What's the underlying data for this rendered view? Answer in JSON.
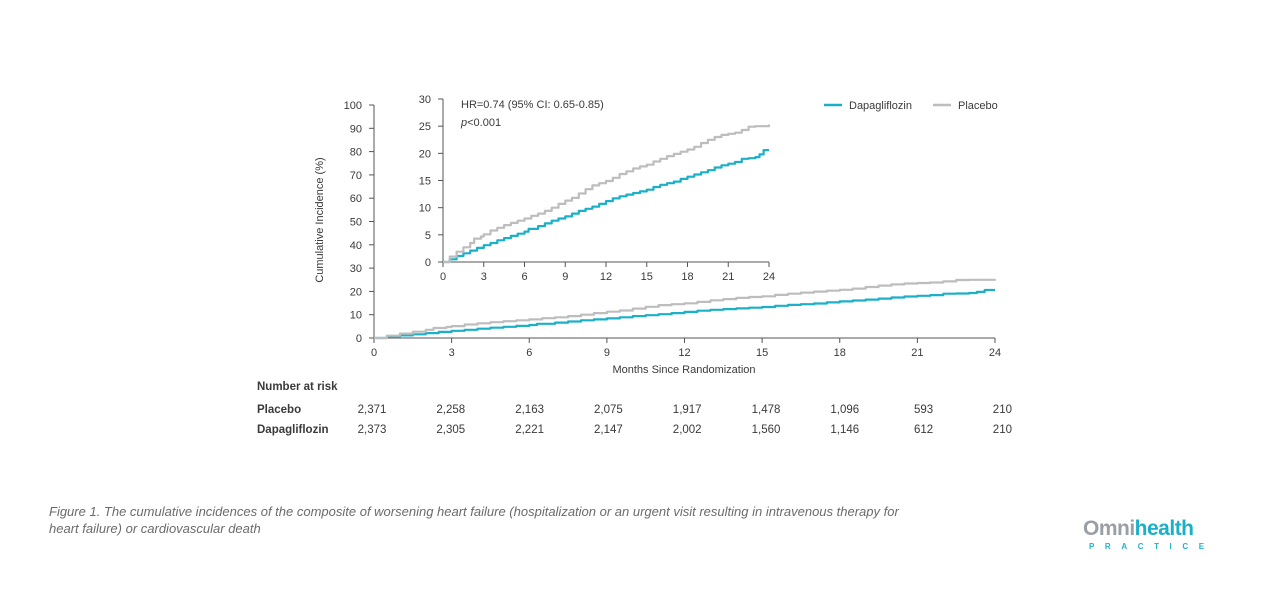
{
  "chart_data": {
    "type": "line",
    "title": "",
    "xlabel": "Months Since Randomization",
    "ylabel": "Cumulative Incidence (%)",
    "xlim": [
      0,
      24
    ],
    "ylim": [
      0,
      100
    ],
    "x_ticks": [
      "0",
      "3",
      "6",
      "9",
      "12",
      "15",
      "18",
      "21",
      "24"
    ],
    "y_ticks": [
      "0",
      "10",
      "20",
      "30",
      "40",
      "50",
      "60",
      "70",
      "80",
      "90",
      "100"
    ],
    "legend": {
      "placement": "top-right",
      "entries": [
        "Dapagliflozin",
        "Placebo"
      ]
    },
    "colors": {
      "Dapagliflozin": "#1ab0c8",
      "Placebo": "#bdbdbd",
      "axis": "#555555"
    },
    "series": [
      {
        "name": "Dapagliflozin",
        "x": [
          0,
          0.5,
          1,
          1.5,
          2,
          2.5,
          3,
          3.5,
          4,
          4.5,
          5,
          5.5,
          6,
          6.3,
          7,
          7.5,
          8,
          8.5,
          9,
          9.5,
          10,
          10.5,
          11,
          11.5,
          12,
          12.5,
          13,
          13.5,
          14,
          14.5,
          15,
          15.5,
          16,
          16.5,
          17,
          17.5,
          18,
          18.5,
          19,
          19.5,
          20,
          20.5,
          21,
          21.5,
          22,
          22.5,
          23,
          23.3,
          23.6,
          24
        ],
        "y": [
          0,
          0.5,
          1.1,
          1.6,
          2.1,
          2.6,
          3.1,
          3.5,
          4.0,
          4.4,
          4.8,
          5.2,
          5.6,
          6.1,
          6.6,
          7.1,
          7.6,
          8.0,
          8.4,
          8.9,
          9.4,
          9.8,
          10.2,
          10.7,
          11.2,
          11.7,
          12.1,
          12.4,
          12.7,
          13.0,
          13.3,
          13.8,
          14.2,
          14.5,
          14.8,
          15.3,
          15.7,
          16.1,
          16.5,
          16.9,
          17.4,
          17.8,
          18.1,
          18.4,
          19.0,
          19.1,
          19.3,
          19.8,
          20.6,
          20.6
        ]
      },
      {
        "name": "Placebo",
        "x": [
          0,
          0.5,
          1,
          1.5,
          2,
          2.3,
          2.8,
          3,
          3.5,
          4,
          4.5,
          5,
          5.5,
          6,
          6.5,
          7,
          7.5,
          8,
          8.5,
          9,
          9.5,
          10,
          10.5,
          11,
          11.5,
          12,
          12.5,
          13,
          13.5,
          14,
          14.5,
          15,
          15.5,
          16,
          16.5,
          17,
          17.5,
          18,
          18.5,
          19,
          19.5,
          20,
          20.5,
          21,
          21.5,
          22,
          22.5,
          23,
          23.5,
          24
        ],
        "y": [
          0,
          1.0,
          1.9,
          2.7,
          3.5,
          4.3,
          4.7,
          5.1,
          5.8,
          6.3,
          6.8,
          7.2,
          7.6,
          8.0,
          8.5,
          8.9,
          9.4,
          10.0,
          10.7,
          11.3,
          11.8,
          12.6,
          13.4,
          14.1,
          14.5,
          14.9,
          15.5,
          16.2,
          16.7,
          17.2,
          17.6,
          17.9,
          18.5,
          19.0,
          19.5,
          19.9,
          20.3,
          20.7,
          21.2,
          21.9,
          22.5,
          23.0,
          23.4,
          23.6,
          23.8,
          24.3,
          24.9,
          25.0,
          25.0,
          25.3
        ]
      }
    ],
    "inset": {
      "xlim": [
        0,
        24
      ],
      "ylim": [
        0,
        30
      ],
      "x_ticks": [
        "0",
        "3",
        "6",
        "9",
        "12",
        "15",
        "18",
        "21",
        "24"
      ],
      "y_ticks": [
        "0",
        "5",
        "10",
        "15",
        "20",
        "25",
        "30"
      ],
      "annotation_hr": "HR=0.74 (95% CI: 0.65-0.85)",
      "annotation_p_italic": "p",
      "annotation_p_rest": "<0.001"
    },
    "number_at_risk": {
      "heading": "Number at risk",
      "rows": [
        {
          "label": "Placebo",
          "values": [
            "2,371",
            "2,258",
            "2,163",
            "2,075",
            "1,917",
            "1,478",
            "1,096",
            "593",
            "210"
          ]
        },
        {
          "label": "Dapagliflozin",
          "values": [
            "2,373",
            "2,305",
            "2,221",
            "2,147",
            "2,002",
            "1,560",
            "1,146",
            "612",
            "210"
          ]
        }
      ]
    }
  },
  "caption": "Figure 1. The cumulative incidences of the composite of worsening heart failure (hospitalization or an urgent visit resulting in intravenous therapy for heart failure)  or cardiovascular death",
  "logo": {
    "part1": "Omni",
    "part2": "health",
    "sub": "PRACTICE"
  }
}
